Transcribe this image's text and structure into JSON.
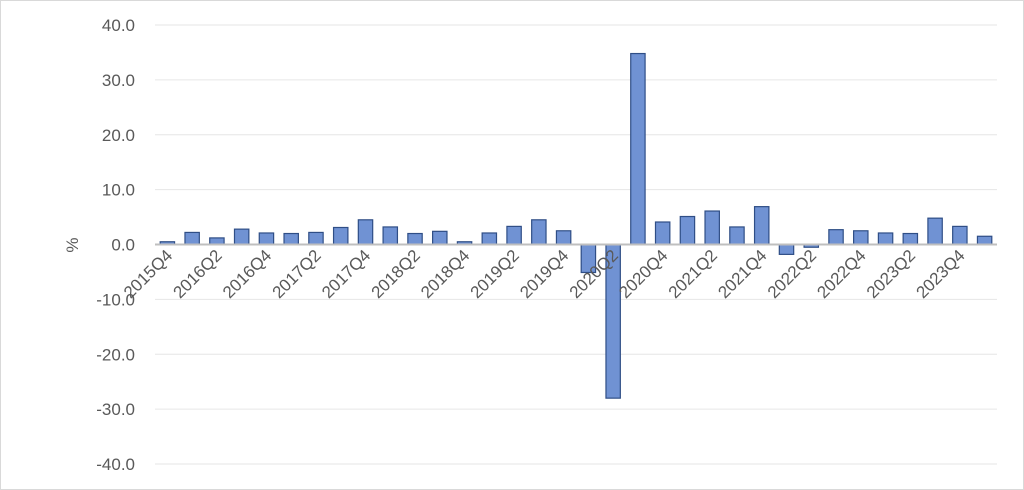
{
  "chart_data": {
    "type": "bar",
    "title": "",
    "xlabel": "",
    "ylabel": "%",
    "ylim": [
      -40,
      40
    ],
    "yticks": [
      40,
      30,
      20,
      10,
      0,
      -10,
      -20,
      -30,
      -40
    ],
    "ytick_labels": [
      "40.0",
      "30.0",
      "20.0",
      "10.0",
      "0.0",
      "-10.0",
      "-20.0",
      "-30.0",
      "-40.0"
    ],
    "grid": true,
    "bar_color": "#7092D3",
    "bar_edge_color": "#2F4E86",
    "categories": [
      "2015Q4",
      "2016Q1",
      "2016Q2",
      "2016Q3",
      "2016Q4",
      "2017Q1",
      "2017Q2",
      "2017Q3",
      "2017Q4",
      "2018Q1",
      "2018Q2",
      "2018Q3",
      "2018Q4",
      "2019Q1",
      "2019Q2",
      "2019Q3",
      "2019Q4",
      "2020Q1",
      "2020Q2",
      "2020Q3",
      "2020Q4",
      "2021Q1",
      "2021Q2",
      "2021Q3",
      "2021Q4",
      "2022Q1",
      "2022Q2",
      "2022Q3",
      "2022Q4",
      "2023Q1",
      "2023Q2",
      "2023Q3",
      "2023Q4",
      "2024Q1"
    ],
    "visible_tick_labels": [
      "2015Q4",
      "",
      "2016Q2",
      "",
      "2016Q4",
      "",
      "2017Q2",
      "",
      "2017Q4",
      "",
      "2018Q2",
      "",
      "2018Q4",
      "",
      "2019Q2",
      "",
      "2019Q4",
      "",
      "2020Q2",
      "",
      "2020Q4",
      "",
      "2021Q2",
      "",
      "2021Q4",
      "",
      "2022Q2",
      "",
      "2022Q4",
      "",
      "2023Q2",
      "",
      "2023Q4",
      ""
    ],
    "values": [
      0.5,
      2.2,
      1.2,
      2.8,
      2.1,
      2.0,
      2.2,
      3.1,
      4.5,
      3.2,
      2.0,
      2.4,
      0.5,
      2.1,
      3.3,
      4.5,
      2.5,
      -5.1,
      -28.0,
      34.8,
      4.1,
      5.1,
      6.1,
      3.2,
      6.9,
      -1.8,
      -0.5,
      2.7,
      2.5,
      2.1,
      2.0,
      4.8,
      3.3,
      1.5
    ]
  }
}
